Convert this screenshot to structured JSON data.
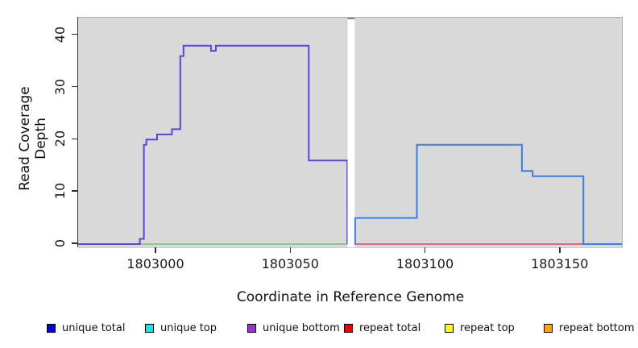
{
  "chart_data": {
    "type": "line",
    "subtype": "step-coverage",
    "title": "",
    "xlabel": "Coordinate in Reference Genome",
    "ylabel": "Read Coverage Depth",
    "xlim": [
      1802971,
      1803173
    ],
    "ylim": [
      0,
      43
    ],
    "x_ticks": [
      "1803000",
      "1803050",
      "1803100",
      "1803150"
    ],
    "y_ticks": [
      "0",
      "10",
      "20",
      "30",
      "40"
    ],
    "grid": false,
    "plot_bg_color": "#D9D9D9",
    "coverage_gap": {
      "x_start": 1803071.3,
      "x_end": 1803073.9,
      "fill": "#FFFFFF",
      "top_mark_color": "#8C8C8C"
    },
    "series": [
      {
        "name": "baseline-left-green",
        "color": "#74C476",
        "line_width": 1.6,
        "levels": [
          [
            1802971.3,
            0
          ]
        ],
        "end_x": 1803071.2
      },
      {
        "name": "unique-bottom-left-segment",
        "color": "#5B45DB",
        "line_width": 2,
        "levels": [
          [
            1802971.3,
            0
          ],
          [
            1802994.2,
            1
          ],
          [
            1802995.7,
            19
          ],
          [
            1802996.6,
            20
          ],
          [
            1803000.6,
            21
          ],
          [
            1803006.1,
            22
          ],
          [
            1803009.2,
            36
          ],
          [
            1803010.4,
            38
          ],
          [
            1803020.6,
            37
          ],
          [
            1803022.4,
            38
          ],
          [
            1803056.9,
            16
          ],
          [
            1803071.2,
            0
          ]
        ],
        "end_x": 1803071.2
      },
      {
        "name": "baseline-right-red",
        "color": "#D8455F",
        "line_width": 1.6,
        "levels": [
          [
            1803073.9,
            0
          ]
        ],
        "end_x": 1803173.1
      },
      {
        "name": "unique-total-right-segment",
        "color": "#3C7EE8",
        "line_width": 2,
        "levels": [
          [
            1803073.9,
            0
          ],
          [
            1803074.1,
            5
          ],
          [
            1803097.0,
            19
          ],
          [
            1803136.0,
            14
          ],
          [
            1803140.0,
            13
          ],
          [
            1803158.8,
            0
          ]
        ],
        "end_x": 1803173.1
      }
    ]
  },
  "legend": {
    "items": [
      {
        "label": "unique total",
        "color": "#0000EE"
      },
      {
        "label": "unique top",
        "color": "#00EEEE"
      },
      {
        "label": "unique bottom",
        "color": "#9732CA"
      },
      {
        "label": "repeat total",
        "color": "#EE0000"
      },
      {
        "label": "repeat top",
        "color": "#FFFF00"
      },
      {
        "label": "repeat bottom",
        "color": "#FFA500"
      }
    ]
  }
}
